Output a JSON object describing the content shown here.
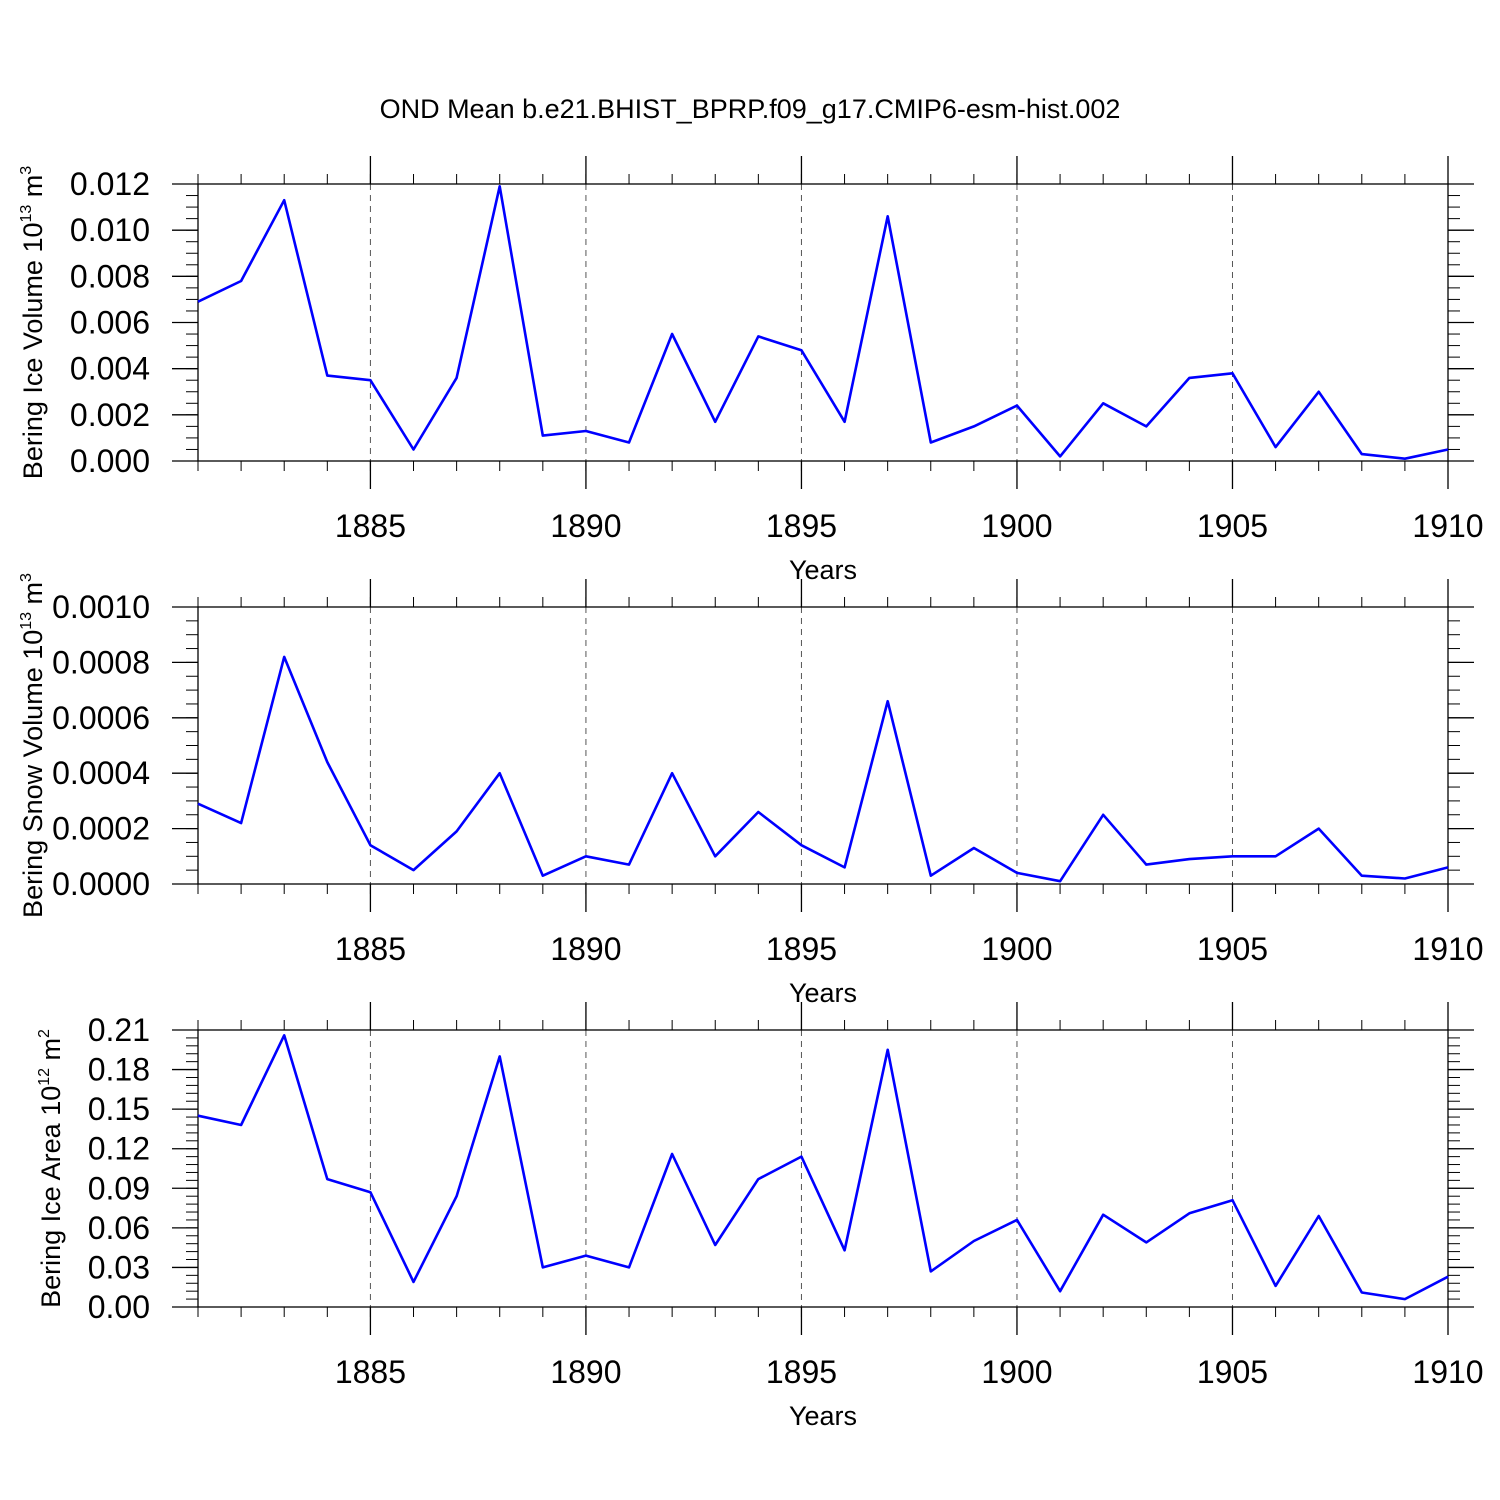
{
  "title": "OND Mean b.e21.BHIST_BPRP.f09_g17.CMIP6-esm-hist.002",
  "line_color": "#0000ff",
  "chart_data": [
    {
      "type": "line",
      "title": "OND Mean b.e21.BHIST_BPRP.f09_g17.CMIP6-esm-hist.002",
      "xlabel": "Years",
      "ylabel_base": "Bering Ice Volume 10",
      "ylabel_exp": "13",
      "ylabel_unit": " m",
      "ylabel_unit_exp": "3",
      "xlim": [
        1881,
        1910
      ],
      "ylim": [
        0,
        0.012
      ],
      "x_ticks": [
        1885,
        1890,
        1895,
        1900,
        1905,
        1910
      ],
      "x_tick_labels": [
        "1885",
        "1890",
        "1895",
        "1900",
        "1905",
        "1910"
      ],
      "y_ticks": [
        0,
        0.002,
        0.004,
        0.006,
        0.008,
        0.01,
        0.012
      ],
      "y_tick_labels": [
        "0.000",
        "0.002",
        "0.004",
        "0.006",
        "0.008",
        "0.010",
        "0.012"
      ],
      "y_minor": 0.0005,
      "x": [
        1881,
        1882,
        1883,
        1884,
        1885,
        1886,
        1887,
        1888,
        1889,
        1890,
        1891,
        1892,
        1893,
        1894,
        1895,
        1896,
        1897,
        1898,
        1899,
        1900,
        1901,
        1902,
        1903,
        1904,
        1905,
        1906,
        1907,
        1908,
        1909,
        1910
      ],
      "values": [
        0.0069,
        0.0078,
        0.0113,
        0.0037,
        0.0035,
        0.0005,
        0.0036,
        0.0119,
        0.0011,
        0.0013,
        0.0008,
        0.0055,
        0.0017,
        0.0054,
        0.0048,
        0.0017,
        0.0106,
        0.0008,
        0.0015,
        0.0024,
        0.0002,
        0.0025,
        0.0015,
        0.0036,
        0.0038,
        0.0006,
        0.003,
        0.0003,
        0.0001,
        0.0005
      ]
    },
    {
      "type": "line",
      "xlabel": "Years",
      "ylabel_base": "Bering Snow Volume 10",
      "ylabel_exp": "13",
      "ylabel_unit": " m",
      "ylabel_unit_exp": "3",
      "xlim": [
        1881,
        1910
      ],
      "ylim": [
        0,
        0.001
      ],
      "x_ticks": [
        1885,
        1890,
        1895,
        1900,
        1905,
        1910
      ],
      "x_tick_labels": [
        "1885",
        "1890",
        "1895",
        "1900",
        "1905",
        "1910"
      ],
      "y_ticks": [
        0,
        0.0002,
        0.0004,
        0.0006,
        0.0008,
        0.001
      ],
      "y_tick_labels": [
        "0.0000",
        "0.0002",
        "0.0004",
        "0.0006",
        "0.0008",
        "0.0010"
      ],
      "y_minor": 5e-05,
      "x": [
        1881,
        1882,
        1883,
        1884,
        1885,
        1886,
        1887,
        1888,
        1889,
        1890,
        1891,
        1892,
        1893,
        1894,
        1895,
        1896,
        1897,
        1898,
        1899,
        1900,
        1901,
        1902,
        1903,
        1904,
        1905,
        1906,
        1907,
        1908,
        1909,
        1910
      ],
      "values": [
        0.00029,
        0.00022,
        0.00082,
        0.00044,
        0.00014,
        5e-05,
        0.00019,
        0.0004,
        3e-05,
        0.0001,
        7e-05,
        0.0004,
        0.0001,
        0.00026,
        0.00014,
        6e-05,
        0.00066,
        3e-05,
        0.00013,
        4e-05,
        1e-05,
        0.00025,
        7e-05,
        9e-05,
        0.0001,
        0.0001,
        0.0002,
        3e-05,
        2e-05,
        6e-05
      ]
    },
    {
      "type": "line",
      "xlabel": "Years",
      "ylabel_base": "Bering Ice Area 10",
      "ylabel_exp": "12",
      "ylabel_unit": " m",
      "ylabel_unit_exp": "2",
      "xlim": [
        1881,
        1910
      ],
      "ylim": [
        0,
        0.21
      ],
      "x_ticks": [
        1885,
        1890,
        1895,
        1900,
        1905,
        1910
      ],
      "x_tick_labels": [
        "1885",
        "1890",
        "1895",
        "1900",
        "1905",
        "1910"
      ],
      "y_ticks": [
        0,
        0.03,
        0.06,
        0.09,
        0.12,
        0.15,
        0.18,
        0.21
      ],
      "y_tick_labels": [
        "0.00",
        "0.03",
        "0.06",
        "0.09",
        "0.12",
        "0.15",
        "0.18",
        "0.21"
      ],
      "y_minor": 0.006,
      "x": [
        1881,
        1882,
        1883,
        1884,
        1885,
        1886,
        1887,
        1888,
        1889,
        1890,
        1891,
        1892,
        1893,
        1894,
        1895,
        1896,
        1897,
        1898,
        1899,
        1900,
        1901,
        1902,
        1903,
        1904,
        1905,
        1906,
        1907,
        1908,
        1909,
        1910
      ],
      "values": [
        0.145,
        0.138,
        0.206,
        0.097,
        0.087,
        0.019,
        0.084,
        0.19,
        0.03,
        0.039,
        0.03,
        0.116,
        0.047,
        0.097,
        0.114,
        0.043,
        0.195,
        0.027,
        0.05,
        0.066,
        0.012,
        0.07,
        0.049,
        0.071,
        0.081,
        0.016,
        0.069,
        0.011,
        0.006,
        0.023
      ]
    }
  ]
}
